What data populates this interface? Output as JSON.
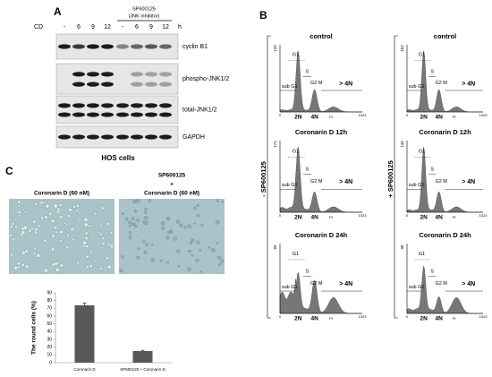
{
  "panel_a": {
    "label": "A",
    "treatment_label": "CD",
    "lanes": [
      "-",
      "6",
      "9",
      "12",
      "-",
      "6",
      "9",
      "12"
    ],
    "unit": "h",
    "inhibitor": [
      "SP600125",
      "(JNK inhibitor)"
    ],
    "blots": [
      "cyclin B1",
      "phospho-JNK1/2",
      "total-JNK1/2",
      "GAPDH"
    ],
    "caption": "HOS cells"
  },
  "panel_b": {
    "label": "B",
    "columns": [
      {
        "side_label": "- SP600125",
        "plots": [
          {
            "title": "control",
            "y_max": 132
          },
          {
            "title": "Coronarin D 12h",
            "y_max": 171
          },
          {
            "title": "Coronarin D 24h",
            "y_max": 65
          }
        ]
      },
      {
        "side_label": "+ SP600125",
        "plots": [
          {
            "title": "control",
            "y_max": 152
          },
          {
            "title": "Coronarin D 12h",
            "y_max": 144
          },
          {
            "title": "Coronarin D 24h",
            "y_max": 96
          }
        ]
      }
    ],
    "gates": {
      "g1": "G1",
      "s": "S",
      "g2m": "G2 M",
      "sub_g1": "sub G1",
      "polyploid": "> 4N"
    },
    "x_axis": {
      "min": 0,
      "max": 1023,
      "label": "PI",
      "markers": [
        "2N",
        "4N"
      ]
    }
  },
  "panel_c": {
    "label": "C",
    "image_labels": [
      [
        "Coronarin D (60 nM)"
      ],
      [
        "SP600125",
        "+",
        "Coronarin D (60 nM)"
      ]
    ],
    "bar_chart": {
      "ylabel": "The round cells (%)",
      "categories": [
        "Coronarin D",
        "SP600125 + Coronarin D"
      ],
      "values": [
        74,
        15
      ],
      "errors": [
        3,
        1
      ],
      "ylim": [
        0,
        90
      ],
      "yticks": [
        0,
        10,
        20,
        30,
        40,
        50,
        60,
        70,
        80,
        90
      ],
      "color": "#595959"
    }
  }
}
